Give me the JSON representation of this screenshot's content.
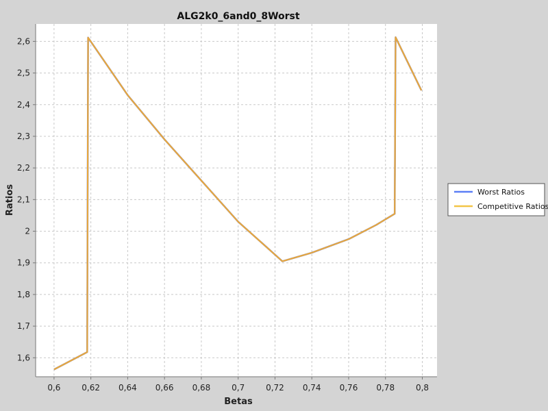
{
  "chart_data": {
    "type": "line",
    "title": "ALG2k0_6and0_8Worst",
    "xlabel": "Betas",
    "ylabel": "Ratios",
    "xlim": [
      0.59,
      0.808
    ],
    "ylim": [
      1.54,
      2.655
    ],
    "x_ticks": [
      0.6,
      0.62,
      0.64,
      0.66,
      0.68,
      0.7,
      0.72,
      0.74,
      0.76,
      0.78,
      0.8
    ],
    "x_tick_labels": [
      "0,6",
      "0,62",
      "0,64",
      "0,66",
      "0,68",
      "0,7",
      "0,72",
      "0,74",
      "0,76",
      "0,78",
      "0,8"
    ],
    "y_ticks": [
      1.6,
      1.7,
      1.8,
      1.9,
      2.0,
      2.1,
      2.2,
      2.3,
      2.4,
      2.5,
      2.6
    ],
    "y_tick_labels": [
      "1,6",
      "1,7",
      "1,8",
      "1,9",
      "2",
      "2,1",
      "2,2",
      "2,3",
      "2,4",
      "2,5",
      "2,6"
    ],
    "grid": true,
    "legend_position": "right",
    "series": [
      {
        "name": "Worst Ratios",
        "color": "#4f6ef0",
        "x": [
          0.6,
          0.618,
          0.6185,
          0.64,
          0.66,
          0.68,
          0.7,
          0.724,
          0.74,
          0.76,
          0.775,
          0.785,
          0.7855,
          0.7995
        ],
        "y": [
          1.563,
          1.618,
          2.612,
          2.43,
          2.29,
          2.16,
          2.03,
          1.905,
          1.932,
          1.975,
          2.02,
          2.055,
          2.613,
          2.445
        ]
      },
      {
        "name": "Competitive Ratios",
        "color": "#e8a83c",
        "x": [
          0.6,
          0.618,
          0.6185,
          0.64,
          0.66,
          0.68,
          0.7,
          0.724,
          0.74,
          0.76,
          0.775,
          0.785,
          0.7855,
          0.7995
        ],
        "y": [
          1.563,
          1.618,
          2.612,
          2.43,
          2.29,
          2.16,
          2.03,
          1.905,
          1.932,
          1.975,
          2.02,
          2.055,
          2.613,
          2.445
        ]
      }
    ]
  },
  "legend": {
    "items": [
      {
        "label": "Worst Ratios",
        "color": "#5b7ef6"
      },
      {
        "label": "Competitive Ratios",
        "color": "#f2c547"
      }
    ]
  }
}
